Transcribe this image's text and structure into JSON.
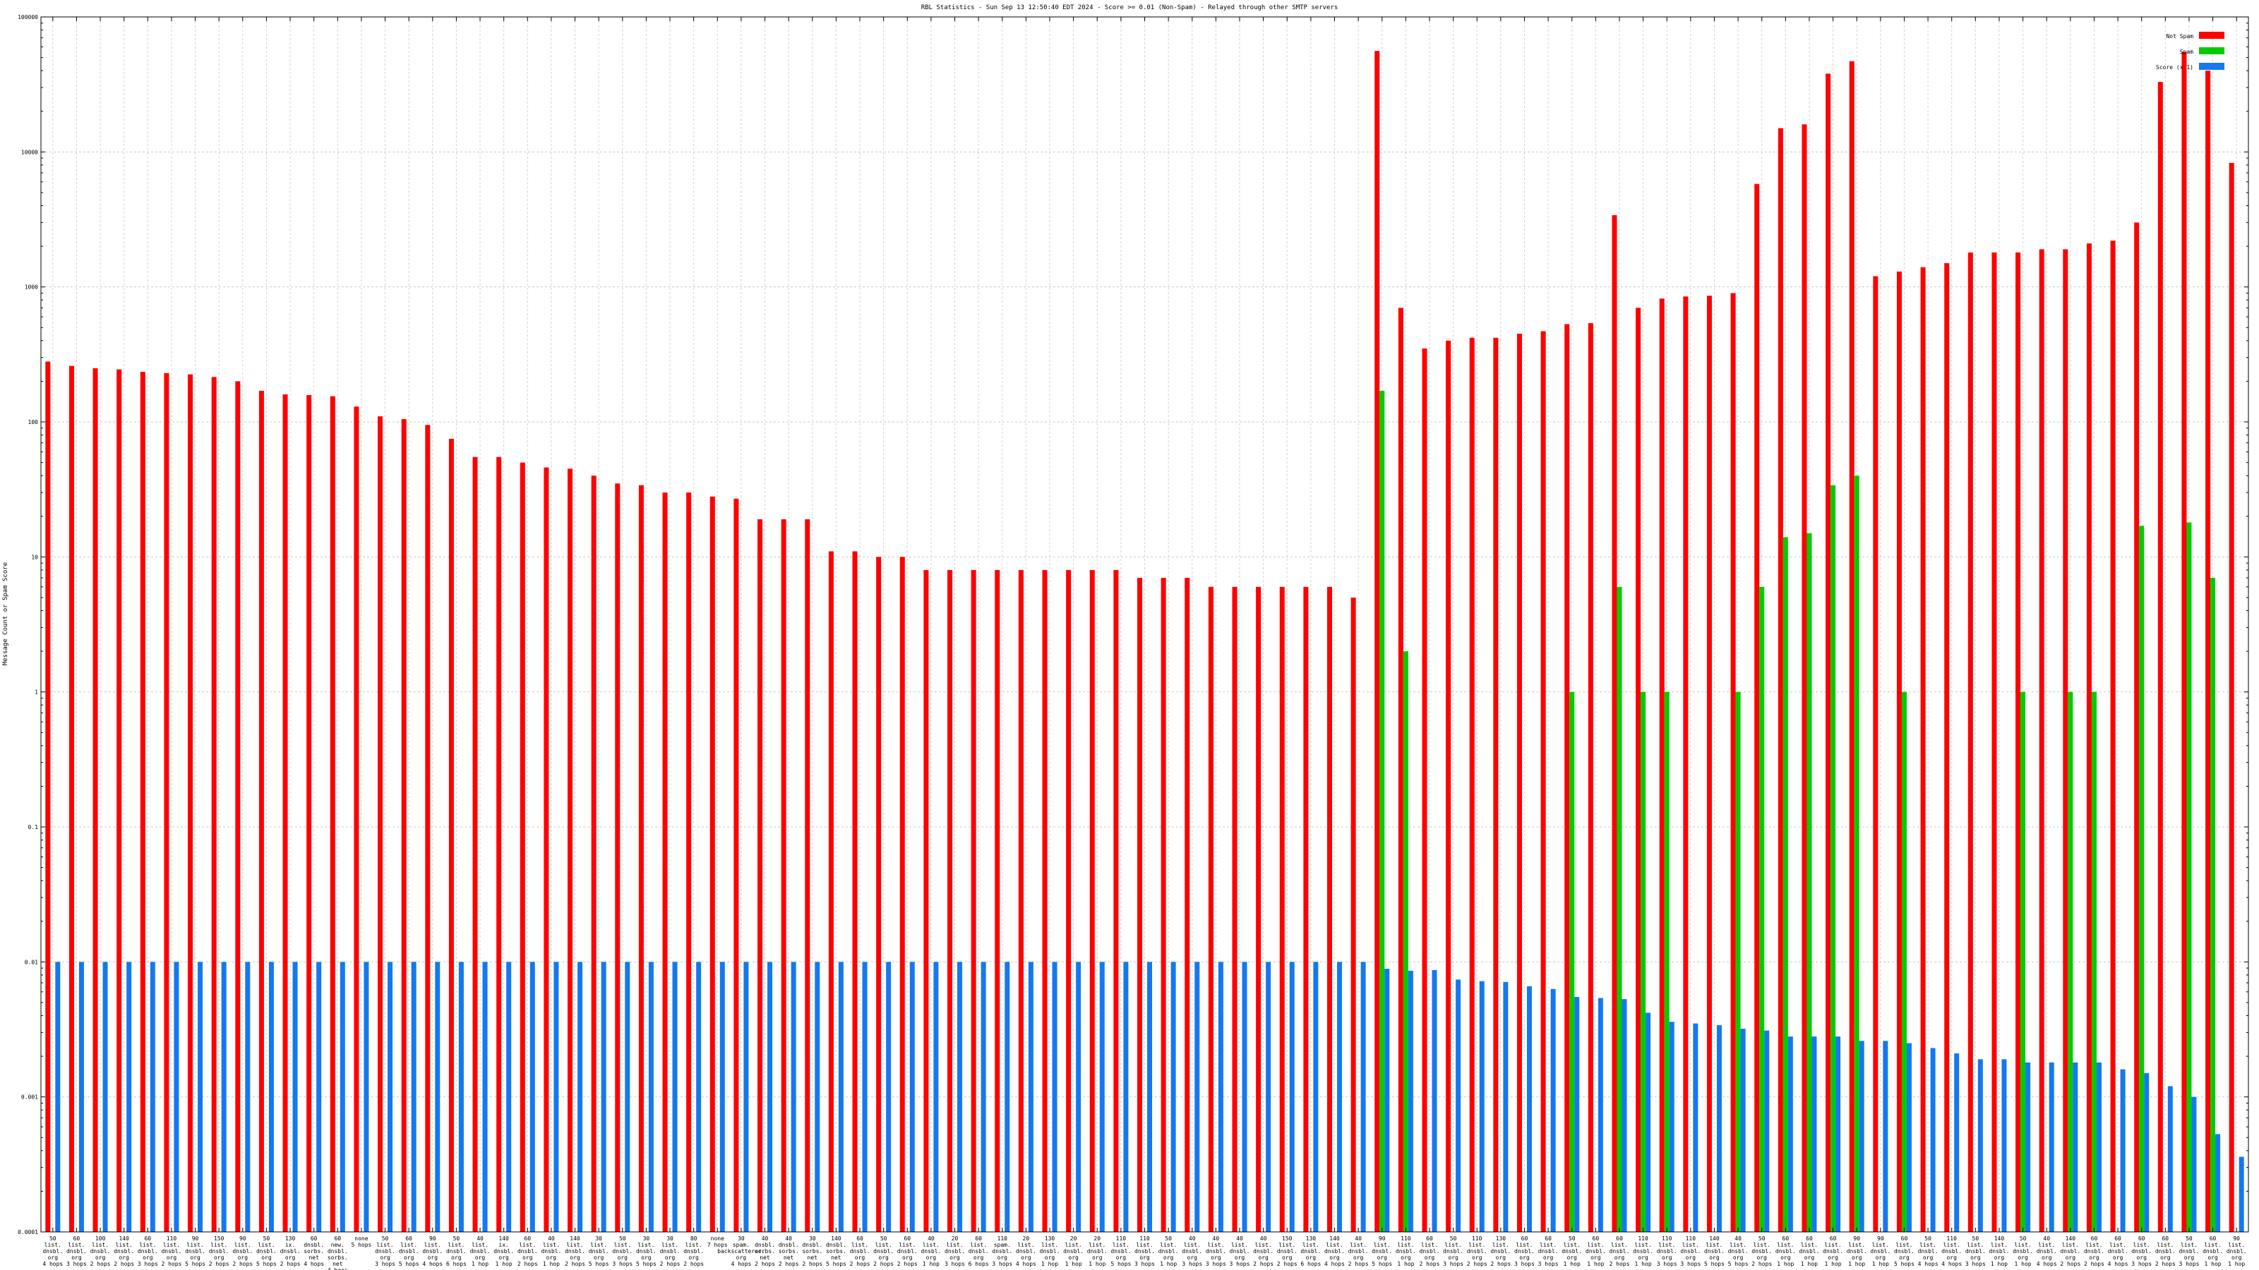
{
  "chart_data": {
    "type": "bar",
    "title": "RBL Statistics - Sun Sep 13 12:50:40 EDT 2024 - Score >= 0.01 (Non-Spam) - Relayed through other SMTP servers",
    "ylabel": "Message Count or Spam Score",
    "xlabel": "",
    "yscale": "log",
    "ylim": [
      0.0001,
      100000
    ],
    "yticks": [
      "0.0001",
      "0.001",
      "0.01",
      "0.1",
      "1",
      "10",
      "100",
      "1000",
      "10000",
      "100000"
    ],
    "legend_position": "top-right",
    "grid": true,
    "categories": [
      "50 list. dnsbl. org 4 hops",
      "60 list. dnsbl. org 3 hops",
      "100 list. dnsbl. org 2 hops",
      "140 list. dnsbl. org 2 hops",
      "60 list. dnsbl. org 3 hops",
      "110 list. dnsbl. org 2 hops",
      "90 list. dnsbl. org 5 hops",
      "150 list. dnsbl. org 2 hops",
      "90 list. dnsbl. org 2 hops",
      "50 list. dnsbl. org 5 hops",
      "130 ix. dnsbl. org 2 hops",
      "60 dnsbl. sorbs. net 4 hops",
      "60 new. dnsbl. sorbs. net 4 hops",
      "none 5 hops",
      "50 list. dnsbl. org 3 hops",
      "60 list. dnsbl. org 5 hops",
      "90 list. dnsbl. org 4 hops",
      "50 list. dnsbl. org 6 hops",
      "40 list. dnsbl. org 1 hop",
      "140 ix. dnsbl. org 1 hop",
      "60 list. dnsbl. org 2 hops",
      "40 list. dnsbl. org 1 hop",
      "140 list. dnsbl. org 2 hops",
      "30 list. dnsbl. org 5 hops",
      "50 list. dnsbl. org 3 hops",
      "30 list. dnsbl. org 5 hops",
      "30 list. dnsbl. org 2 hops",
      "80 list. dnsbl. org 2 hops",
      "none 7 hops",
      "30 spam. backscatterer. org 4 hops",
      "40 dnsbl. sorbs. net 2 hops",
      "40 dnsbl. sorbs. net 2 hops",
      "30 dnsbl. sorbs. net 2 hops",
      "140 dnsbl. sorbs. net 5 hops",
      "60 list. dnsbl. org 2 hops",
      "50 list. dnsbl. org 2 hops",
      "60 list. dnsbl. org 2 hops",
      "40 list. dnsbl. org 1 hop",
      "20 list. dnsbl. org 3 hops",
      "60 list. dnsbl. org 6 hops",
      "110 spam. dnsbl. org 3 hops",
      "20 list. dnsbl. org 4 hops",
      "130 list. dnsbl. org 1 hop",
      "20 list. dnsbl. org 1 hop",
      "20 list. dnsbl. org 1 hop",
      "110 list. dnsbl. org 5 hops",
      "110 list. dnsbl. org 3 hops",
      "50 list. dnsbl. org 1 hop",
      "40 list. dnsbl. org 3 hops",
      "40 list. dnsbl. org 3 hops",
      "40 list. dnsbl. org 3 hops",
      "40 list. dnsbl. org 2 hops",
      "150 list. dnsbl. org 2 hops",
      "130 list. dnsbl. org 6 hops",
      "140 list. dnsbl. org 4 hops",
      "40 list. dnsbl. org 2 hops",
      "90 list. dnsbl. org 5 hops",
      "110 list. dnsbl. org 1 hop",
      "60 list. dnsbl. org 2 hops",
      "50 list. dnsbl. org 3 hops",
      "110 list. dnsbl. org 2 hops",
      "130 list. dnsbl. org 2 hops",
      "60 list. dnsbl. org 3 hops",
      "60 list. dnsbl. org 3 hops",
      "50 list. dnsbl. org 1 hop",
      "60 list. dnsbl. org 1 hop",
      "60 list. dnsbl. org 2 hops",
      "110 list. dnsbl. org 1 hop",
      "110 list. dnsbl. org 3 hops",
      "110 list. dnsbl. org 3 hops",
      "140 list. dnsbl. org 5 hops",
      "40 list. dnsbl. org 5 hops",
      "50 list. dnsbl. org 2 hops",
      "60 list. dnsbl. org 1 hop",
      "60 list. dnsbl. org 1 hop",
      "60 list. dnsbl. org 1 hop",
      "90 list. dnsbl. org 1 hop",
      "90 list. dnsbl. org 1 hop",
      "60 list. dnsbl. org 5 hops",
      "50 list. dnsbl. org 4 hops",
      "110 list. dnsbl. org 4 hops",
      "50 list. dnsbl. org 3 hops",
      "140 list. dnsbl. org 1 hop",
      "50 list. dnsbl. org 1 hop",
      "40 list. dnsbl. org 4 hops",
      "140 list. dnsbl. org 2 hops",
      "60 list. dnsbl. org 2 hops",
      "60 list. dnsbl. org 4 hops",
      "60 list. dnsbl. org 3 hops",
      "60 list. dnsbl. org 2 hops",
      "50 list. dnsbl. org 3 hops",
      "60 list. dnsbl. org 1 hop",
      "90 list. dnsbl. org 1 hop"
    ],
    "series": [
      {
        "name": "Not Spam",
        "color": "#ff0000",
        "values": [
          280,
          260,
          250,
          245,
          235,
          230,
          225,
          215,
          200,
          170,
          160,
          158,
          155,
          130,
          110,
          105,
          95,
          75,
          55,
          55,
          50,
          46,
          45,
          40,
          35,
          34,
          30,
          30,
          28,
          27,
          19,
          19,
          19,
          11,
          11,
          10,
          10,
          8,
          8,
          8,
          8,
          8,
          8,
          8,
          8,
          8,
          7,
          7,
          7,
          6,
          6,
          6,
          6,
          6,
          6,
          5,
          56000,
          700,
          350,
          400,
          420,
          420,
          450,
          470,
          530,
          540,
          3400,
          700,
          820,
          850,
          860,
          900,
          5800,
          15000,
          16000,
          38000,
          47000,
          1200,
          1300,
          1400,
          1500,
          1800,
          1800,
          1800,
          1900,
          1900,
          2100,
          2200,
          3000,
          33000,
          55000,
          40000,
          8300
        ]
      },
      {
        "name": "Spam",
        "color": "#00cc00",
        "values": [
          0,
          0,
          0,
          0,
          0,
          0,
          0,
          0,
          0,
          0,
          0,
          0,
          0,
          0,
          0,
          0,
          0,
          0,
          0,
          0,
          0,
          0,
          0,
          0,
          0,
          0,
          0,
          0,
          0,
          0,
          0,
          0,
          0,
          0,
          0,
          0,
          0,
          0,
          0,
          0,
          0,
          0,
          0,
          0,
          0,
          0,
          0,
          0,
          0,
          0,
          0,
          0,
          0,
          0,
          0,
          0,
          170,
          2,
          0,
          0,
          0,
          0,
          0,
          0,
          1,
          0,
          6,
          1,
          1,
          0,
          0,
          1,
          6,
          14,
          15,
          34,
          40,
          0,
          1,
          0,
          0,
          0,
          0,
          1,
          0,
          1,
          1,
          0,
          17,
          0,
          18,
          7,
          0
        ]
      },
      {
        "name": "Score (x 1)",
        "color": "#1478f0",
        "values": [
          0.01,
          0.01,
          0.01,
          0.01,
          0.01,
          0.01,
          0.01,
          0.01,
          0.01,
          0.01,
          0.01,
          0.01,
          0.01,
          0.01,
          0.01,
          0.01,
          0.01,
          0.01,
          0.01,
          0.01,
          0.01,
          0.01,
          0.01,
          0.01,
          0.01,
          0.01,
          0.01,
          0.01,
          0.01,
          0.01,
          0.01,
          0.01,
          0.01,
          0.01,
          0.01,
          0.01,
          0.01,
          0.01,
          0.01,
          0.01,
          0.01,
          0.01,
          0.01,
          0.01,
          0.01,
          0.01,
          0.01,
          0.01,
          0.01,
          0.01,
          0.01,
          0.01,
          0.01,
          0.01,
          0.01,
          0.01,
          0.0089,
          0.0086,
          0.0087,
          0.0074,
          0.0072,
          0.0071,
          0.0066,
          0.0063,
          0.0055,
          0.0054,
          0.0053,
          0.0042,
          0.0036,
          0.0035,
          0.0034,
          0.0032,
          0.0031,
          0.0028,
          0.0028,
          0.0028,
          0.0026,
          0.0026,
          0.0025,
          0.0023,
          0.0021,
          0.0019,
          0.0019,
          0.0018,
          0.0018,
          0.0018,
          0.0018,
          0.0016,
          0.0015,
          0.0012,
          0.001,
          0.00053,
          0.00036
        ]
      }
    ]
  }
}
